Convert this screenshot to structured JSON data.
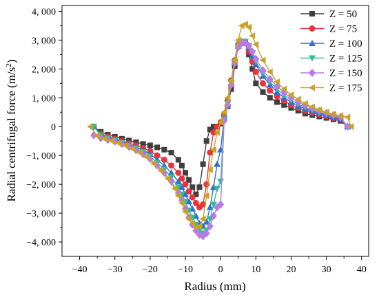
{
  "chart_data": {
    "type": "line",
    "xlabel": "Radius (mm)",
    "ylabel": "Radial centrifugal force (m/s",
    "ylabel_sup": "2",
    "ylabel_end": ")",
    "xlim": [
      -45,
      42
    ],
    "ylim": [
      -4500,
      4200
    ],
    "x_ticks": [
      -40,
      -30,
      -20,
      -10,
      0,
      10,
      20,
      30,
      40
    ],
    "x_tick_labels": [
      "−40",
      "−30",
      "−20",
      "−10",
      "0",
      "10",
      "20",
      "30",
      "40"
    ],
    "y_ticks": [
      -4000,
      -3000,
      -2000,
      -1000,
      0,
      1000,
      2000,
      3000,
      4000
    ],
    "y_tick_labels": [
      "−4, 000",
      "−3, 000",
      "−2, 000",
      "−1, 000",
      "0",
      "1, 000",
      "2, 000",
      "3, 000",
      "4, 000"
    ],
    "grid": false,
    "legend_position": "top-right",
    "series": [
      {
        "name": "Z = 50",
        "color": "#3f3f3f",
        "marker": "square",
        "x": [
          -36,
          -34,
          -32,
          -30,
          -28,
          -26,
          -24,
          -22,
          -20,
          -18,
          -16,
          -14,
          -12,
          -11,
          -10,
          -9,
          -8,
          -7,
          -6,
          -5,
          -4,
          -3,
          -2,
          -1,
          0,
          1,
          2,
          3,
          4,
          5,
          6,
          7,
          8,
          9,
          10,
          12,
          14,
          16,
          18,
          20,
          22,
          24,
          26,
          28,
          30,
          32,
          34,
          36
        ],
        "y": [
          0,
          -180,
          -280,
          -350,
          -420,
          -480,
          -540,
          -600,
          -650,
          -720,
          -800,
          -900,
          -1150,
          -1350,
          -1600,
          -1850,
          -2100,
          -2350,
          -2100,
          -1300,
          -500,
          -100,
          0,
          0,
          100,
          300,
          700,
          1300,
          2100,
          2800,
          2950,
          2900,
          2500,
          2000,
          1500,
          1200,
          1000,
          850,
          750,
          650,
          550,
          450,
          400,
          350,
          300,
          250,
          200,
          0
        ]
      },
      {
        "name": "Z = 75",
        "color": "#e8343a",
        "marker": "circle",
        "x": [
          -36,
          -34,
          -32,
          -30,
          -28,
          -26,
          -24,
          -22,
          -20,
          -18,
          -16,
          -14,
          -12,
          -11,
          -10,
          -9,
          -8,
          -7,
          -6,
          -5,
          -4,
          -3,
          -2,
          -1,
          0,
          1,
          2,
          3,
          4,
          5,
          6,
          7,
          8,
          9,
          10,
          12,
          14,
          16,
          18,
          20,
          22,
          24,
          26,
          28,
          30,
          32,
          34,
          36
        ],
        "y": [
          0,
          -250,
          -350,
          -420,
          -500,
          -580,
          -650,
          -750,
          -850,
          -1000,
          -1150,
          -1350,
          -1600,
          -1800,
          -2000,
          -2250,
          -2450,
          -2650,
          -2800,
          -2700,
          -2000,
          -900,
          -200,
          0,
          150,
          400,
          900,
          1600,
          2300,
          2850,
          2950,
          2900,
          2600,
          2250,
          1900,
          1500,
          1250,
          1050,
          900,
          750,
          650,
          550,
          480,
          420,
          360,
          300,
          250,
          0
        ]
      },
      {
        "name": "Z = 100",
        "color": "#2f6fd6",
        "marker": "triangle-up",
        "x": [
          -36,
          -34,
          -32,
          -30,
          -28,
          -26,
          -24,
          -22,
          -20,
          -18,
          -16,
          -14,
          -12,
          -11,
          -10,
          -9,
          -8,
          -7,
          -6,
          -5,
          -4,
          -3,
          -2,
          -1,
          0,
          1,
          2,
          3,
          4,
          5,
          6,
          7,
          8,
          9,
          10,
          12,
          14,
          16,
          18,
          20,
          22,
          24,
          26,
          28,
          30,
          32,
          34,
          36
        ],
        "y": [
          0,
          -280,
          -380,
          -450,
          -530,
          -620,
          -700,
          -820,
          -950,
          -1150,
          -1350,
          -1600,
          -1900,
          -2100,
          -2350,
          -2600,
          -2850,
          -3100,
          -3350,
          -3450,
          -3300,
          -2800,
          -2100,
          -1300,
          -800,
          300,
          800,
          1500,
          2200,
          2800,
          2950,
          2950,
          2750,
          2450,
          2150,
          1750,
          1450,
          1200,
          1000,
          850,
          720,
          620,
          540,
          470,
          400,
          340,
          280,
          0
        ]
      },
      {
        "name": "Z = 125",
        "color": "#2fbf8f",
        "marker": "triangle-down",
        "x": [
          -36,
          -34,
          -32,
          -30,
          -28,
          -26,
          -24,
          -22,
          -20,
          -18,
          -16,
          -14,
          -12,
          -11,
          -10,
          -9,
          -8,
          -7,
          -6,
          -5,
          -4,
          -3,
          -2,
          -1,
          0,
          1,
          2,
          3,
          4,
          5,
          6,
          7,
          8,
          9,
          10,
          12,
          14,
          16,
          18,
          20,
          22,
          24,
          26,
          28,
          30,
          32,
          34,
          36
        ],
        "y": [
          0,
          -300,
          -400,
          -480,
          -560,
          -650,
          -750,
          -880,
          -1030,
          -1250,
          -1480,
          -1750,
          -2100,
          -2350,
          -2600,
          -2900,
          -3150,
          -3400,
          -3600,
          -3700,
          -3600,
          -3200,
          -2700,
          -2150,
          -1900,
          250,
          800,
          1500,
          2250,
          2800,
          2950,
          2950,
          2800,
          2550,
          2250,
          1850,
          1550,
          1300,
          1100,
          920,
          780,
          670,
          580,
          500,
          430,
          360,
          300,
          0
        ]
      },
      {
        "name": "Z = 150",
        "color": "#b57be6",
        "marker": "diamond",
        "x": [
          -36,
          -34,
          -32,
          -30,
          -28,
          -26,
          -24,
          -22,
          -20,
          -18,
          -16,
          -14,
          -12,
          -11,
          -10,
          -9,
          -8,
          -7,
          -6,
          -5,
          -4,
          -3,
          -2,
          -1,
          0,
          1,
          2,
          3,
          4,
          5,
          6,
          7,
          8,
          9,
          10,
          12,
          14,
          16,
          18,
          20,
          22,
          24,
          26,
          28,
          30,
          32,
          34,
          36
        ],
        "y": [
          -300,
          -400,
          -460,
          -520,
          -600,
          -700,
          -820,
          -950,
          -1120,
          -1350,
          -1600,
          -1900,
          -2300,
          -2550,
          -2850,
          -3150,
          -3400,
          -3600,
          -3750,
          -3800,
          -3700,
          -3450,
          -3100,
          -2800,
          -2700,
          200,
          750,
          1450,
          2200,
          2750,
          2900,
          2900,
          2800,
          2600,
          2350,
          1950,
          1650,
          1400,
          1180,
          1000,
          850,
          730,
          630,
          550,
          470,
          400,
          330,
          0
        ]
      },
      {
        "name": "Z = 175",
        "color": "#c9a227",
        "marker": "triangle-left",
        "x": [
          -37,
          -35,
          -33,
          -31,
          -29,
          -27,
          -25,
          -23,
          -21,
          -19,
          -17,
          -15,
          -13,
          -12,
          -11,
          -10,
          -9,
          -8,
          -7,
          -6,
          -5,
          -4,
          -3,
          -2,
          -1,
          0,
          1,
          2,
          3,
          4,
          5,
          6,
          7,
          8,
          9,
          10,
          12,
          14,
          16,
          18,
          20,
          22,
          24,
          26,
          28,
          30,
          32,
          34,
          36,
          37
        ],
        "y": [
          0,
          -320,
          -420,
          -490,
          -570,
          -660,
          -770,
          -900,
          -1060,
          -1280,
          -1520,
          -1800,
          -2150,
          -2400,
          -2650,
          -2950,
          -3200,
          -3350,
          -3500,
          -3450,
          -3200,
          -2400,
          -1500,
          -800,
          -200,
          150,
          500,
          1000,
          1600,
          2300,
          3000,
          3500,
          3550,
          3450,
          3150,
          2850,
          2300,
          1900,
          1550,
          1300,
          1100,
          950,
          800,
          680,
          580,
          500,
          430,
          380,
          330,
          0
        ]
      }
    ]
  }
}
